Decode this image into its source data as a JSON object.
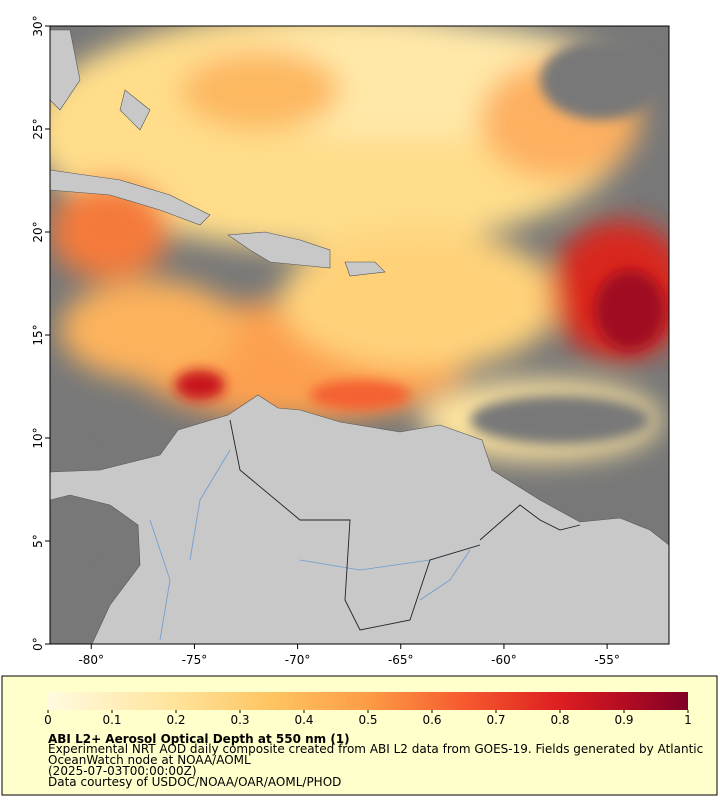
{
  "map": {
    "xlim": [
      -82,
      -52
    ],
    "ylim": [
      0,
      30
    ],
    "xticks": [
      {
        "value": -80,
        "label": "-80°"
      },
      {
        "value": -75,
        "label": "-75°"
      },
      {
        "value": -70,
        "label": "-70°"
      },
      {
        "value": -65,
        "label": "-65°"
      },
      {
        "value": -60,
        "label": "-60°"
      },
      {
        "value": -55,
        "label": "-55°"
      }
    ],
    "yticks": [
      {
        "value": 0,
        "label": "0°"
      },
      {
        "value": 5,
        "label": "5°"
      },
      {
        "value": 10,
        "label": "10°"
      },
      {
        "value": 15,
        "label": "15°"
      },
      {
        "value": 20,
        "label": "20°"
      },
      {
        "value": 25,
        "label": "25°"
      },
      {
        "value": 30,
        "label": "30°"
      }
    ],
    "colorbar": {
      "lim": [
        0,
        1
      ],
      "ticks": [
        0,
        0.1,
        0.2,
        0.3,
        0.4,
        0.5,
        0.6,
        0.7,
        0.8,
        0.9,
        1
      ]
    },
    "title": "ABI L2+ Aerosol Optical Depth at 550 nm (1)",
    "description": [
      "Experimental NRT AOD daily composite created from ABI L2 data from GOES-19. Fields generated by Atlantic",
      "OceanWatch node at NOAA/AOML",
      "(2025-07-03T00:00:00Z)",
      "Data courtesy of USDOC/NOAA/OAR/AOML/PHOD"
    ]
  }
}
